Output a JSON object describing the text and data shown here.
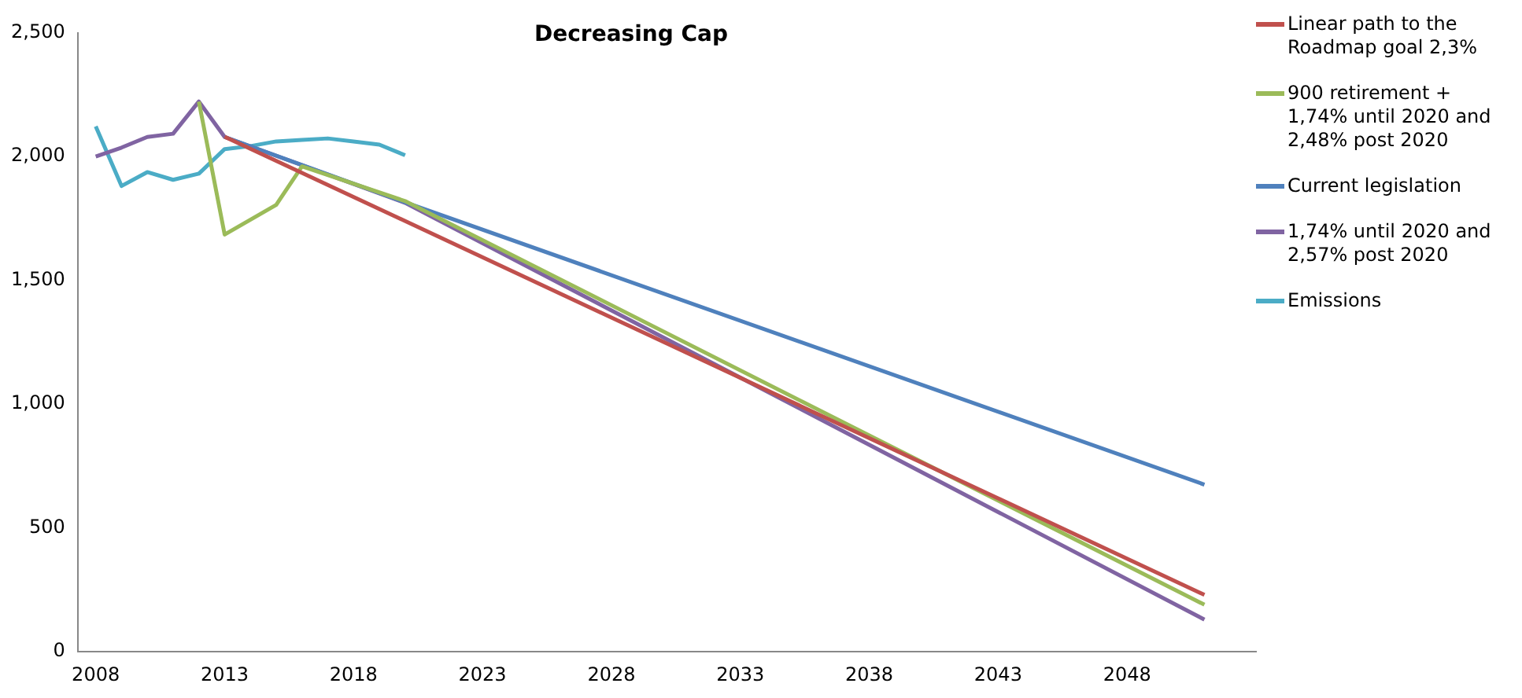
{
  "chart_data": {
    "type": "line",
    "title": "Decreasing Cap",
    "xlim": [
      2007.3,
      2053
    ],
    "xticks": [
      2008,
      2013,
      2018,
      2023,
      2028,
      2033,
      2038,
      2043,
      2048
    ],
    "ylim": [
      0,
      2500
    ],
    "yticks": [
      {
        "value": 0,
        "label": "0"
      },
      {
        "value": 500,
        "label": "500"
      },
      {
        "value": 1000,
        "label": "1,000"
      },
      {
        "value": 1500,
        "label": "1,500"
      },
      {
        "value": 2000,
        "label": "2,000"
      },
      {
        "value": 2500,
        "label": "2,500"
      }
    ],
    "grid": false,
    "legend": "right",
    "marker": "none",
    "line_style": "solid",
    "series": [
      {
        "name": "Linear path to the Roadmap goal 2,3%",
        "color": "#c0504d",
        "x": [
          2013,
          2051
        ],
        "values": [
          2080,
          230
        ]
      },
      {
        "name": "900 retirement + 1,74% until 2020 and 2,48% post 2020",
        "color": "#9bbb59",
        "x": [
          2012,
          2013,
          2015,
          2016,
          2020,
          2051
        ],
        "values": [
          2222,
          1685,
          1805,
          1960,
          1820,
          190
        ]
      },
      {
        "name": "Current legislation",
        "color": "#4f81bd",
        "x": [
          2013,
          2020,
          2051
        ],
        "values": [
          2079,
          1815,
          675
        ]
      },
      {
        "name": "1,74% until 2020 and 2,57% post 2020",
        "color": "#8064a2",
        "x": [
          2008,
          2009,
          2010,
          2011,
          2012,
          2013,
          2020,
          2051
        ],
        "values": [
          2000,
          2036,
          2079,
          2092,
          2222,
          2079,
          1813,
          130
        ]
      },
      {
        "name": "Emissions",
        "color": "#4bacc6",
        "x": [
          2008,
          2009,
          2010,
          2011,
          2012,
          2013,
          2014,
          2015,
          2016,
          2017,
          2018,
          2019,
          2020
        ],
        "values": [
          2122,
          1881,
          1937,
          1906,
          1931,
          2030,
          2042,
          2061,
          2067,
          2073,
          2061,
          2048,
          2005
        ]
      }
    ]
  }
}
